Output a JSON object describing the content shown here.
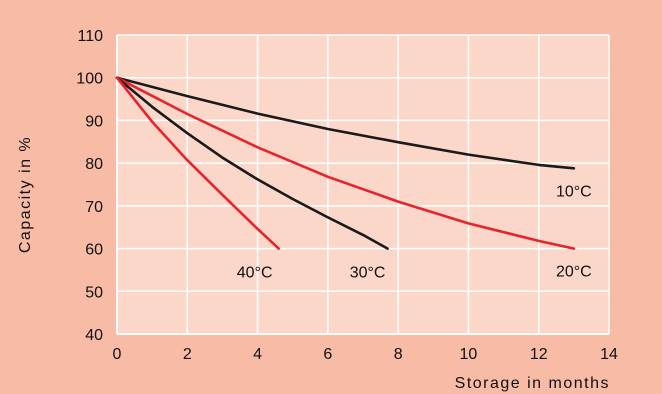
{
  "chart_data": {
    "type": "line",
    "xlabel": "Storage in months",
    "ylabel": "Capacity in %",
    "xlim": [
      0,
      14
    ],
    "ylim": [
      40,
      110
    ],
    "x_ticks": [
      0,
      2,
      4,
      6,
      8,
      10,
      12,
      14
    ],
    "y_ticks": [
      40,
      50,
      60,
      70,
      80,
      90,
      100,
      110
    ],
    "grid": true,
    "colors": {
      "background": "#f7bba6",
      "plot_area": "#fbd7c9",
      "grid": "#ffffff",
      "black_series": "#1a1a1a",
      "red_series": "#e8232c"
    },
    "series": [
      {
        "name": "10°C",
        "color": "#1a1a1a",
        "x": [
          0,
          2,
          4,
          6,
          8,
          10,
          12,
          13
        ],
        "y": [
          100,
          95.7,
          91.6,
          88.0,
          84.9,
          82.0,
          79.6,
          78.8
        ]
      },
      {
        "name": "20°C",
        "color": "#e8232c",
        "x": [
          0,
          2,
          4,
          6,
          8,
          10,
          12,
          13
        ],
        "y": [
          100,
          91.5,
          83.7,
          76.8,
          71.0,
          65.9,
          61.8,
          60.0
        ]
      },
      {
        "name": "30°C",
        "color": "#1a1a1a",
        "x": [
          0,
          1,
          2,
          3,
          4,
          5,
          6,
          7,
          7.7
        ],
        "y": [
          100,
          93.2,
          87.0,
          81.3,
          76.2,
          71.6,
          67.3,
          63.2,
          60.0
        ]
      },
      {
        "name": "40°C",
        "color": "#e8232c",
        "x": [
          0,
          1,
          2,
          3,
          4,
          4.6
        ],
        "y": [
          100,
          89.7,
          80.7,
          72.6,
          64.6,
          60.0
        ]
      }
    ]
  }
}
